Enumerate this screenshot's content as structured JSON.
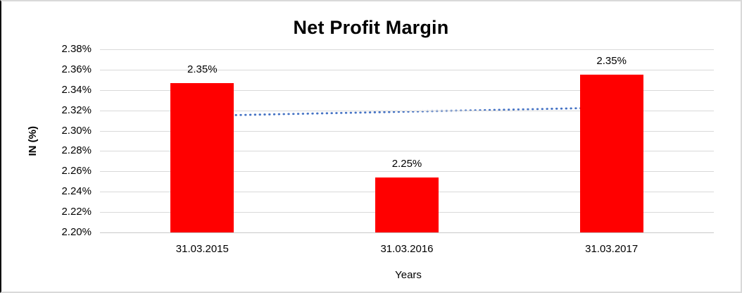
{
  "chart_data": {
    "type": "bar",
    "title": "Net Profit Margin",
    "categories": [
      "31.03.2015",
      "31.03.2016",
      "31.03.2017"
    ],
    "values": [
      2.347,
      2.254,
      2.355
    ],
    "data_labels": [
      "2.35%",
      "2.25%",
      "2.35%"
    ],
    "xlabel": "Years",
    "ylabel": "IN (%)",
    "ylim": [
      2.2,
      2.38
    ],
    "ytick_step": 0.02,
    "yticks": [
      "2.38%",
      "2.36%",
      "2.34%",
      "2.32%",
      "2.30%",
      "2.28%",
      "2.26%",
      "2.24%",
      "2.22%",
      "2.20%"
    ],
    "grid": true,
    "legend": "none",
    "bar_color": "#ff0000",
    "gridline_color": "#d9d9d9",
    "trendline": {
      "type": "linear",
      "style": "dotted",
      "color": "#4472c4",
      "endpoint_values": [
        2.3147,
        2.3227
      ]
    }
  }
}
